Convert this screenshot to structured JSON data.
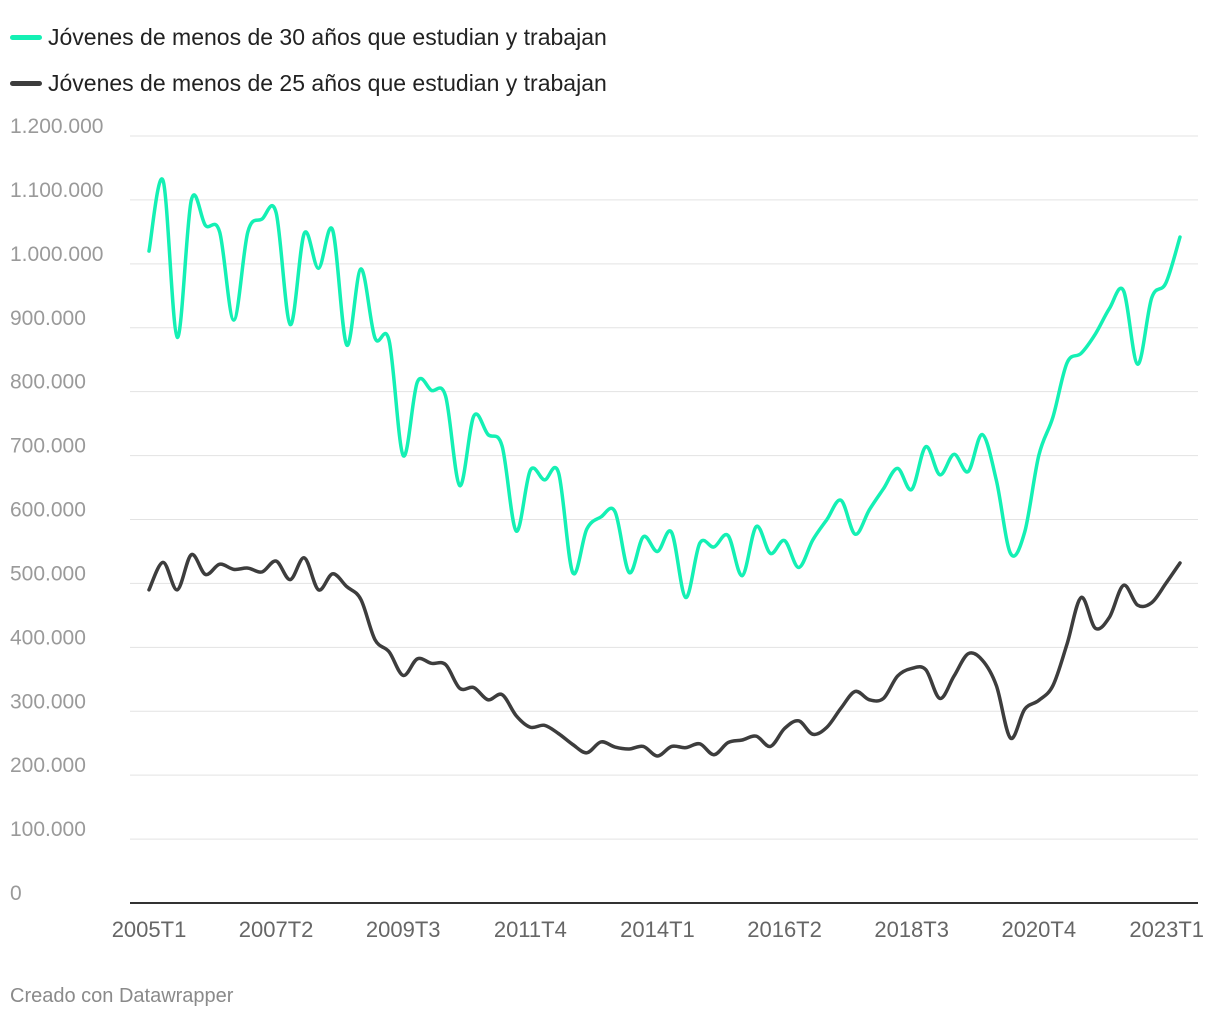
{
  "chart_data": {
    "type": "line",
    "title": "",
    "xlabel": "",
    "ylabel": "",
    "ylim": [
      0,
      1200000
    ],
    "yticks": [
      0,
      100000,
      200000,
      300000,
      400000,
      500000,
      600000,
      700000,
      800000,
      900000,
      1000000,
      1100000,
      1200000
    ],
    "ytick_labels": [
      "0",
      "100.000",
      "200.000",
      "300.000",
      "400.000",
      "500.000",
      "600.000",
      "700.000",
      "800.000",
      "900.000",
      "1.000.000",
      "1.100.000",
      "1.200.000"
    ],
    "xticks": [
      {
        "index": 0,
        "label": "2005T1"
      },
      {
        "index": 9,
        "label": "2007T2"
      },
      {
        "index": 18,
        "label": "2009T3"
      },
      {
        "index": 27,
        "label": "2011T4"
      },
      {
        "index": 36,
        "label": "2014T1"
      },
      {
        "index": 45,
        "label": "2016T2"
      },
      {
        "index": 54,
        "label": "2018T3"
      },
      {
        "index": 63,
        "label": "2020T4"
      },
      {
        "index": 72,
        "label": "2023T1"
      }
    ],
    "x_start": "2005T1",
    "x_end": "2023T1",
    "grid": true,
    "legend_position": "top-left",
    "series": [
      {
        "name": "Jóvenes de menos de 30 años que estudian y trabajan",
        "color": "#14f0b4",
        "values": [
          1020000,
          1130000,
          885000,
          1100000,
          1060000,
          1050000,
          912000,
          1050000,
          1070000,
          1080000,
          905000,
          1048000,
          993000,
          1053000,
          873000,
          992000,
          884000,
          880000,
          700000,
          815000,
          802000,
          793000,
          653000,
          762000,
          733000,
          715000,
          582000,
          677000,
          662000,
          673000,
          517000,
          585000,
          604000,
          612000,
          517000,
          573000,
          550000,
          580000,
          478000,
          563000,
          557000,
          575000,
          512000,
          589000,
          547000,
          567000,
          525000,
          568000,
          600000,
          630000,
          577000,
          615000,
          648000,
          680000,
          647000,
          714000,
          670000,
          702000,
          675000,
          733000,
          661000,
          547000,
          580000,
          700000,
          760000,
          845000,
          860000,
          890000,
          930000,
          958000,
          843000,
          947000,
          970000,
          1042000
        ]
      },
      {
        "name": "Jóvenes de menos de 25 años que estudian y trabajan",
        "color": "#3d3d3d",
        "values": [
          490000,
          533000,
          490000,
          545000,
          514000,
          530000,
          522000,
          524000,
          518000,
          535000,
          506000,
          540000,
          490000,
          515000,
          495000,
          475000,
          412000,
          393000,
          356000,
          382000,
          375000,
          373000,
          336000,
          337000,
          318000,
          326000,
          293000,
          275000,
          278000,
          265000,
          248000,
          235000,
          252000,
          244000,
          241000,
          245000,
          230000,
          245000,
          243000,
          249000,
          232000,
          251000,
          255000,
          261000,
          245000,
          273000,
          285000,
          264000,
          275000,
          305000,
          331000,
          318000,
          320000,
          355000,
          367000,
          365000,
          320000,
          355000,
          390000,
          380000,
          340000,
          258000,
          303000,
          317000,
          340000,
          405000,
          478000,
          430000,
          447000,
          497000,
          466000,
          470000,
          500000,
          532000
        ]
      }
    ]
  },
  "footer": "Creado con Datawrapper"
}
